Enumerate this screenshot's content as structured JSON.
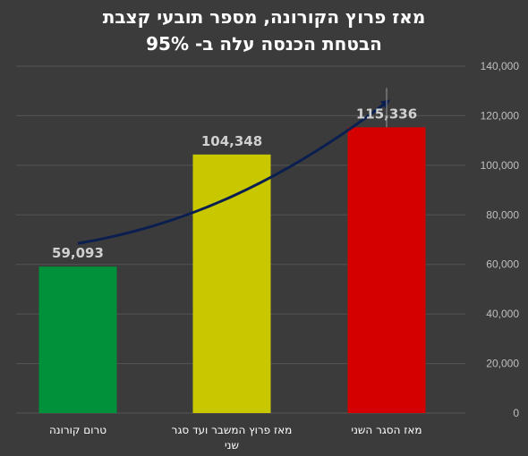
{
  "chart_data": {
    "type": "bar",
    "title_line1": "מאז פרוץ הקורונה, מספר תובעי קצבת",
    "title_line2": "הבטחת הכנסה עלה ב- 95%",
    "categories": [
      [
        "טרום קורונה"
      ],
      [
        "מאז פרוץ המשבר ועד סגר",
        "שני"
      ],
      [
        "מאז הסגר השני"
      ]
    ],
    "values": [
      59093,
      104348,
      115336
    ],
    "data_labels": [
      "59,093",
      "104,348",
      "115,336"
    ],
    "colors": [
      "#00913a",
      "#c9c800",
      "#d40000"
    ],
    "y_ticks": [
      "0",
      "20,000",
      "40,000",
      "60,000",
      "80,000",
      "100,000",
      "120,000",
      "140,000"
    ],
    "ylim": [
      0,
      140000
    ],
    "y_axis_position": "right",
    "grid": true,
    "trend_arrow_color": "#0a1f4f"
  }
}
